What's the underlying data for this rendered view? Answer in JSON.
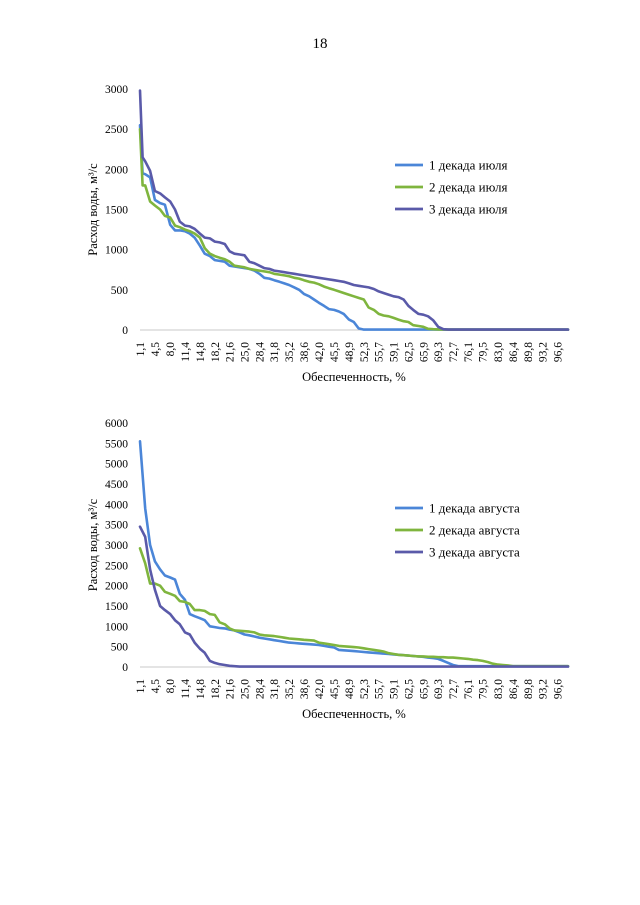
{
  "page": {
    "number": "18"
  },
  "chart_data": [
    {
      "type": "line",
      "ylabel": "Расход воды, м³/с",
      "xlabel": "Обеспеченность, %",
      "ylim": [
        0,
        3000
      ],
      "yticks": [
        0,
        500,
        1000,
        1500,
        2000,
        2500,
        3000
      ],
      "xticklabels": [
        "1,1",
        "4,5",
        "8,0",
        "11,4",
        "14,8",
        "18,2",
        "21,6",
        "25,0",
        "28,4",
        "31,8",
        "35,2",
        "38,6",
        "42,0",
        "45,5",
        "48,9",
        "52,3",
        "55,7",
        "59,1",
        "62,5",
        "65,9",
        "69,3",
        "72,7",
        "76,1",
        "79,5",
        "83,0",
        "86,4",
        "89,8",
        "93,2",
        "96,6"
      ],
      "xlim": [
        1.1,
        99.0
      ],
      "legend": "right",
      "grid": false,
      "series": [
        {
          "name": "1 декада июля",
          "color": "#4b86d8",
          "x": [
            1.1,
            1.7,
            2.3,
            3.4,
            4.5,
            5.7,
            6.8,
            8.0,
            9.1,
            10.2,
            11.4,
            12.5,
            13.6,
            14.8,
            15.9,
            17.1,
            18.2,
            19.3,
            20.5,
            21.6,
            22.7,
            23.9,
            25.0,
            26.1,
            27.3,
            28.4,
            29.5,
            30.7,
            31.8,
            33.0,
            34.1,
            35.2,
            36.4,
            37.5,
            38.6,
            39.8,
            40.9,
            42.0,
            43.2,
            44.3,
            45.5,
            46.6,
            47.7,
            48.9,
            50.0,
            51.1,
            52.3,
            53.4,
            55.0,
            99.0
          ],
          "values": [
            2550,
            1950,
            1940,
            1900,
            1620,
            1580,
            1560,
            1310,
            1240,
            1240,
            1230,
            1200,
            1150,
            1050,
            950,
            920,
            870,
            860,
            850,
            800,
            790,
            780,
            770,
            760,
            740,
            700,
            650,
            640,
            620,
            600,
            580,
            560,
            530,
            500,
            450,
            420,
            380,
            340,
            300,
            260,
            250,
            230,
            200,
            130,
            100,
            20,
            5,
            5,
            5,
            5
          ]
        },
        {
          "name": "2 декада июля",
          "color": "#7fb53e",
          "x": [
            1.1,
            1.7,
            2.3,
            3.4,
            4.5,
            5.7,
            6.8,
            8.0,
            9.1,
            10.2,
            11.4,
            12.5,
            13.6,
            14.8,
            15.9,
            17.1,
            18.2,
            19.3,
            20.5,
            21.6,
            22.7,
            23.9,
            25.0,
            26.1,
            27.3,
            28.4,
            29.5,
            30.7,
            31.8,
            33.0,
            34.1,
            35.2,
            36.4,
            37.5,
            38.6,
            39.8,
            40.9,
            42.0,
            43.2,
            44.3,
            45.5,
            46.6,
            47.7,
            48.9,
            50.0,
            51.1,
            52.3,
            53.4,
            54.6,
            55.7,
            56.8,
            58.0,
            59.1,
            60.2,
            61.4,
            62.5,
            63.6,
            64.8,
            65.9,
            67.0,
            68.2,
            69.3,
            70.5,
            71.0,
            99.0
          ],
          "values": [
            2500,
            1800,
            1800,
            1600,
            1550,
            1500,
            1420,
            1400,
            1300,
            1280,
            1250,
            1230,
            1200,
            1150,
            1020,
            950,
            920,
            900,
            880,
            850,
            800,
            790,
            780,
            760,
            750,
            740,
            730,
            720,
            700,
            690,
            680,
            670,
            650,
            640,
            620,
            600,
            590,
            570,
            540,
            520,
            500,
            480,
            460,
            440,
            420,
            400,
            380,
            280,
            250,
            200,
            180,
            170,
            150,
            130,
            110,
            100,
            60,
            50,
            40,
            15,
            10,
            8,
            5,
            5,
            5
          ]
        },
        {
          "name": "3 декада июля",
          "color": "#5a5aa9",
          "x": [
            1.1,
            1.7,
            2.3,
            3.4,
            4.5,
            5.7,
            6.8,
            8.0,
            9.1,
            10.2,
            11.4,
            12.5,
            13.6,
            14.8,
            15.9,
            17.1,
            18.2,
            19.3,
            20.5,
            21.6,
            22.7,
            23.9,
            25.0,
            26.1,
            27.3,
            28.4,
            29.5,
            30.7,
            31.8,
            33.0,
            34.1,
            35.2,
            36.4,
            37.5,
            38.6,
            39.8,
            40.9,
            42.0,
            43.2,
            44.3,
            45.5,
            46.6,
            47.7,
            48.9,
            50.0,
            51.1,
            52.3,
            53.4,
            54.6,
            55.7,
            56.8,
            58.0,
            59.1,
            60.2,
            61.4,
            62.5,
            63.6,
            64.8,
            65.9,
            67.0,
            68.2,
            69.3,
            70.5,
            71.6,
            72.7,
            73.9,
            99.0
          ],
          "values": [
            2980,
            2150,
            2100,
            1980,
            1730,
            1700,
            1650,
            1600,
            1500,
            1350,
            1300,
            1290,
            1260,
            1200,
            1150,
            1140,
            1100,
            1090,
            1070,
            980,
            950,
            940,
            930,
            850,
            830,
            800,
            770,
            760,
            740,
            730,
            720,
            710,
            700,
            690,
            680,
            670,
            660,
            650,
            640,
            630,
            620,
            610,
            600,
            580,
            560,
            550,
            540,
            530,
            510,
            480,
            460,
            440,
            420,
            410,
            380,
            300,
            250,
            200,
            190,
            170,
            120,
            40,
            10,
            5,
            5,
            5,
            5
          ]
        }
      ]
    },
    {
      "type": "line",
      "ylabel": "Расход воды, м³/с",
      "xlabel": "Обеспеченность, %",
      "ylim": [
        0,
        6000
      ],
      "yticks": [
        0,
        500,
        1000,
        1500,
        2000,
        2500,
        3000,
        3500,
        4000,
        4500,
        5000,
        5500,
        6000
      ],
      "xticklabels": [
        "1,1",
        "4,5",
        "8,0",
        "11,4",
        "14,8",
        "18,2",
        "21,6",
        "25,0",
        "28,4",
        "31,8",
        "35,2",
        "38,6",
        "42,0",
        "45,5",
        "48,9",
        "52,3",
        "55,7",
        "59,1",
        "62,5",
        "65,9",
        "69,3",
        "72,7",
        "76,1",
        "79,5",
        "83,0",
        "86,4",
        "89,8",
        "93,2",
        "96,6"
      ],
      "xlim": [
        1.1,
        99.0
      ],
      "legend": "right",
      "grid": false,
      "series": [
        {
          "name": "1 декада августа",
          "color": "#4b86d8",
          "x": [
            1.1,
            2.3,
            3.4,
            4.5,
            5.7,
            6.8,
            8.0,
            9.1,
            10.2,
            11.4,
            12.5,
            13.6,
            14.8,
            15.9,
            17.1,
            18.2,
            19.3,
            20.5,
            21.6,
            22.7,
            23.9,
            25.0,
            26.1,
            27.3,
            28.4,
            29.5,
            30.7,
            31.8,
            33.0,
            34.1,
            35.2,
            36.4,
            37.5,
            38.6,
            39.8,
            40.9,
            42.0,
            43.2,
            44.3,
            45.5,
            46.6,
            47.7,
            48.9,
            50.0,
            51.1,
            52.3,
            53.4,
            54.6,
            55.7,
            56.8,
            58.0,
            59.1,
            60.2,
            61.4,
            62.5,
            63.6,
            64.8,
            65.9,
            67.0,
            68.2,
            69.3,
            70.5,
            71.6,
            72.7,
            73.9,
            99.0
          ],
          "values": [
            5550,
            3900,
            3000,
            2600,
            2400,
            2250,
            2200,
            2150,
            1800,
            1650,
            1300,
            1250,
            1200,
            1150,
            1000,
            980,
            960,
            950,
            920,
            900,
            850,
            800,
            780,
            750,
            720,
            700,
            680,
            660,
            640,
            620,
            600,
            590,
            580,
            570,
            560,
            550,
            540,
            520,
            500,
            480,
            420,
            410,
            400,
            390,
            380,
            370,
            360,
            350,
            340,
            330,
            320,
            310,
            300,
            290,
            280,
            270,
            260,
            250,
            230,
            220,
            200,
            150,
            100,
            50,
            20,
            20
          ]
        },
        {
          "name": "2 декада августа",
          "color": "#7fb53e",
          "x": [
            1.1,
            2.3,
            3.4,
            4.5,
            5.7,
            6.8,
            8.0,
            9.1,
            10.2,
            11.4,
            12.5,
            13.6,
            14.8,
            15.9,
            17.1,
            18.2,
            19.3,
            20.5,
            21.6,
            22.7,
            23.9,
            25.0,
            26.1,
            27.3,
            28.4,
            29.5,
            30.7,
            31.8,
            33.0,
            34.1,
            35.2,
            36.4,
            37.5,
            38.6,
            39.8,
            40.9,
            42.0,
            43.2,
            44.3,
            45.5,
            46.6,
            47.7,
            48.9,
            50.0,
            51.1,
            52.3,
            53.4,
            54.6,
            55.7,
            56.8,
            58.0,
            59.1,
            60.2,
            61.4,
            62.5,
            63.6,
            64.8,
            65.9,
            67.0,
            68.2,
            69.3,
            70.5,
            71.6,
            72.7,
            73.9,
            75.0,
            76.1,
            77.3,
            78.4,
            79.5,
            80.7,
            81.8,
            83.0,
            84.1,
            85.2,
            86.4,
            99.0
          ],
          "values": [
            2920,
            2550,
            2050,
            2050,
            2000,
            1850,
            1800,
            1750,
            1620,
            1600,
            1550,
            1400,
            1400,
            1380,
            1300,
            1280,
            1100,
            1050,
            950,
            900,
            890,
            880,
            870,
            850,
            800,
            780,
            770,
            760,
            740,
            720,
            700,
            690,
            680,
            670,
            660,
            650,
            600,
            580,
            560,
            540,
            520,
            510,
            500,
            490,
            480,
            460,
            440,
            420,
            400,
            380,
            340,
            320,
            300,
            290,
            280,
            270,
            260,
            260,
            250,
            250,
            240,
            240,
            230,
            230,
            220,
            210,
            200,
            180,
            170,
            150,
            120,
            80,
            60,
            50,
            40,
            20,
            20
          ]
        },
        {
          "name": "3 декада августа",
          "color": "#5a5aa9",
          "x": [
            1.1,
            2.3,
            3.4,
            4.5,
            5.7,
            6.8,
            8.0,
            9.1,
            10.2,
            11.4,
            12.5,
            13.6,
            14.8,
            15.9,
            17.1,
            18.2,
            19.3,
            20.5,
            21.6,
            22.7,
            23.9,
            25.0,
            99.0
          ],
          "values": [
            3450,
            3200,
            2400,
            1900,
            1500,
            1400,
            1300,
            1150,
            1050,
            850,
            800,
            600,
            450,
            350,
            150,
            100,
            70,
            50,
            30,
            20,
            10,
            10,
            10
          ]
        }
      ]
    }
  ]
}
